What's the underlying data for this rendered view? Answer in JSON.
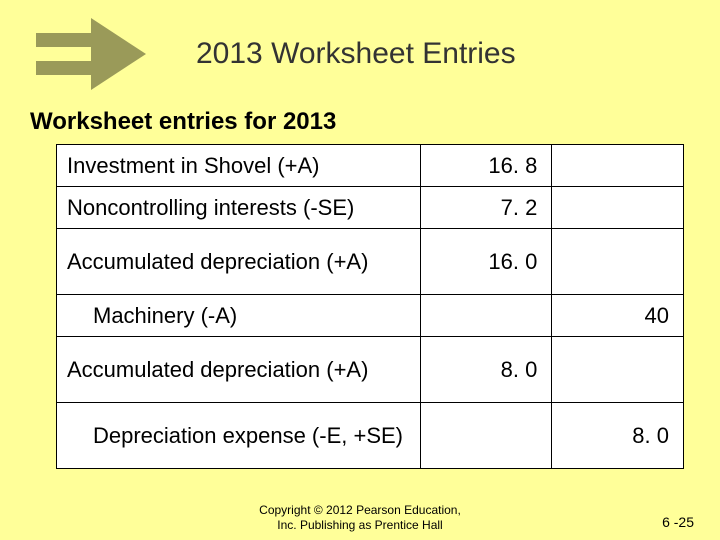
{
  "title": "2013 Worksheet Entries",
  "subtitle": "Worksheet entries for 2013",
  "arrow": {
    "fill": "#9a9a59",
    "width": 110,
    "height": 72
  },
  "table": {
    "rows": [
      {
        "desc": "Investment in Shovel (+A)",
        "col1": "16. 8",
        "col2": "",
        "tall": false,
        "indent": false
      },
      {
        "desc": "Noncontrolling interests (-SE)",
        "col1": "7. 2",
        "col2": "",
        "tall": false,
        "indent": false
      },
      {
        "desc": "Accumulated depreciation (+A)",
        "col1": "16. 0",
        "col2": "",
        "tall": true,
        "indent": false
      },
      {
        "desc": "Machinery (-A)",
        "col1": "",
        "col2": "40",
        "tall": false,
        "indent": true
      },
      {
        "desc": "Accumulated depreciation (+A)",
        "col1": "8. 0",
        "col2": "",
        "tall": true,
        "indent": false
      },
      {
        "desc": "Depreciation expense (-E, +SE)",
        "col1": "",
        "col2": "8. 0",
        "tall": true,
        "indent": true
      }
    ]
  },
  "footer_line1": "Copyright © 2012 Pearson Education,",
  "footer_line2": "Inc. Publishing as Prentice Hall",
  "slide_number": "6 -25",
  "colors": {
    "background": "#ffff99",
    "title_text": "#333333",
    "body_text": "#000000",
    "table_bg": "#ffffff",
    "border": "#000000"
  }
}
